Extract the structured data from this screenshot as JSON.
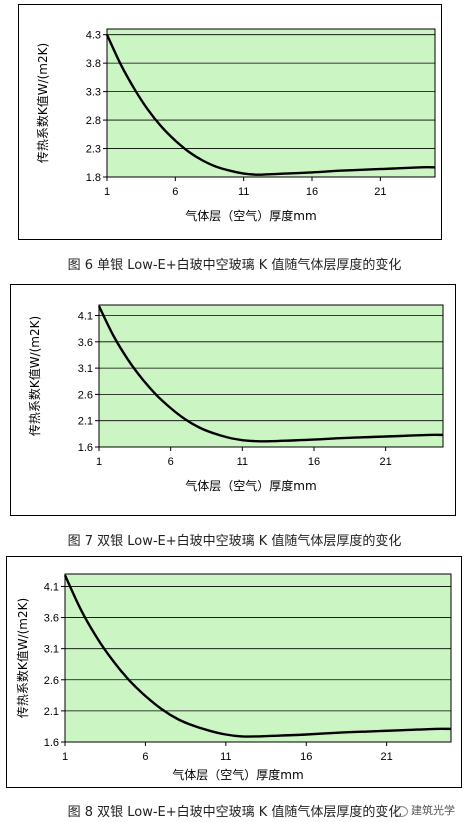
{
  "chart_data": [
    {
      "type": "line",
      "ylabel": "传热系数K值W/(m2K)",
      "xlabel": "气体层（空气）厚度mm",
      "xlim": [
        1,
        25
      ],
      "ylim": [
        1.8,
        4.4
      ],
      "xticks": [
        1,
        6,
        11,
        16,
        21
      ],
      "yticks": [
        "1.8",
        "2.3",
        "2.8",
        "3.3",
        "3.8",
        "4.3"
      ],
      "grid": true,
      "x": [
        1,
        2,
        3,
        4,
        5,
        6,
        7,
        8,
        9,
        10,
        11,
        12,
        13,
        14,
        16,
        18,
        20,
        22,
        24,
        25
      ],
      "y": [
        4.3,
        3.78,
        3.35,
        2.98,
        2.68,
        2.44,
        2.24,
        2.09,
        1.98,
        1.91,
        1.86,
        1.84,
        1.85,
        1.86,
        1.88,
        1.91,
        1.93,
        1.95,
        1.97,
        1.97
      ],
      "caption": "图 6 单银 Low-E+白玻中空玻璃 K 值随气体层厚度的变化"
    },
    {
      "type": "line",
      "ylabel": "传热系数K值W/(m2K)",
      "xlabel": "气体层（空气）厚度mm",
      "xlim": [
        1,
        25
      ],
      "ylim": [
        1.6,
        4.3
      ],
      "xticks": [
        1,
        6,
        11,
        16,
        21
      ],
      "yticks": [
        "1.6",
        "2.1",
        "2.6",
        "3.1",
        "3.6",
        "4.1"
      ],
      "grid": true,
      "x": [
        1,
        2,
        3,
        4,
        5,
        6,
        7,
        8,
        9,
        10,
        11,
        12,
        13,
        14,
        16,
        18,
        20,
        22,
        24,
        25
      ],
      "y": [
        4.28,
        3.72,
        3.27,
        2.9,
        2.59,
        2.34,
        2.13,
        1.97,
        1.86,
        1.78,
        1.73,
        1.71,
        1.71,
        1.72,
        1.74,
        1.77,
        1.79,
        1.81,
        1.83,
        1.83
      ],
      "caption": "图 7 双银 Low-E+白玻中空玻璃 K 值随气体层厚度的变化"
    },
    {
      "type": "line",
      "ylabel": "传热系数K值W/(m2K)",
      "xlabel": "气体层（空气）厚度mm",
      "xlim": [
        1,
        25
      ],
      "ylim": [
        1.6,
        4.3
      ],
      "xticks": [
        1,
        6,
        11,
        16,
        21
      ],
      "yticks": [
        "1.6",
        "2.1",
        "2.6",
        "3.1",
        "3.6",
        "4.1"
      ],
      "grid": true,
      "x": [
        1,
        2,
        3,
        4,
        5,
        6,
        7,
        8,
        9,
        10,
        11,
        12,
        13,
        14,
        16,
        18,
        20,
        22,
        24,
        25
      ],
      "y": [
        4.28,
        3.72,
        3.27,
        2.9,
        2.59,
        2.34,
        2.13,
        1.97,
        1.86,
        1.78,
        1.72,
        1.69,
        1.69,
        1.7,
        1.72,
        1.75,
        1.77,
        1.79,
        1.81,
        1.81
      ],
      "caption": "图 8 双银 Low-E+白玻中空玻璃 K 值随气体层厚度的变化"
    }
  ],
  "watermark": {
    "icon": "wechat-icon",
    "text": "建筑光学"
  },
  "colors": {
    "plot_bg": "#ccf5c4",
    "grid": "#000000",
    "line": "#000000"
  }
}
